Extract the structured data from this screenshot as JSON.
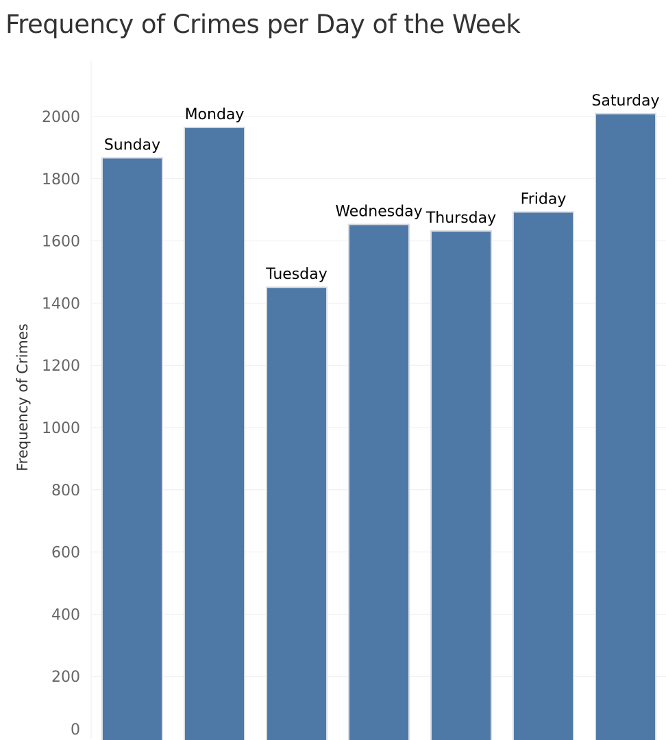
{
  "chart_data": {
    "type": "bar",
    "title": "Frequency of Crimes per Day of the Week",
    "xlabel": "",
    "ylabel": "Frequency of Crimes",
    "categories": [
      "Sunday",
      "Monday",
      "Tuesday",
      "Wednesday",
      "Thursday",
      "Friday",
      "Saturday"
    ],
    "values": [
      1867,
      1965,
      1451,
      1653,
      1632,
      1693,
      2009
    ],
    "ylim": [
      0,
      2150
    ],
    "yticks": [
      0,
      200,
      400,
      600,
      800,
      1000,
      1200,
      1400,
      1600,
      1800,
      2000
    ],
    "bar_color": "#4e79a7",
    "grid": true,
    "legend": "none"
  }
}
